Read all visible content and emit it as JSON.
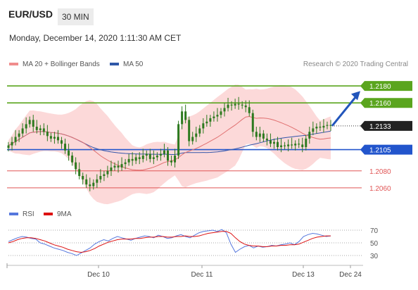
{
  "header": {
    "pair": "EUR/USD",
    "timeframe": "30 MIN",
    "datetime": "Monday, December 14, 2020 1:11:30 AM CET",
    "credit": "Research © 2020 Trading Central"
  },
  "legend": {
    "ma20": "MA 20 + Bollinger Bands",
    "ma50": "MA 50",
    "rsi": "RSI",
    "ma9": "9MA"
  },
  "colors": {
    "resistance": "#5aa51e",
    "support": "#2255cc",
    "minor_support": "#e05555",
    "candle": "#2d7a1f",
    "band_fill": "#fbd2d2",
    "ma20": "#e07070",
    "ma50": "#3355aa",
    "rsi": "#5577dd",
    "ma9": "#dd1111",
    "arrow": "#2255bb"
  },
  "chart_data": [
    {
      "type": "candlestick",
      "title": "EUR/USD 30 MIN",
      "x_tick_labels": [
        "Dec 10",
        "Dec 11",
        "Dec 13",
        "Dec 24"
      ],
      "ylim": [
        1.2045,
        1.2195
      ],
      "levels": [
        {
          "value": 1.218,
          "label": "1.2180",
          "kind": "resistance"
        },
        {
          "value": 1.216,
          "label": "1.2160",
          "kind": "resistance"
        },
        {
          "value": 1.2133,
          "label": "1.2133",
          "kind": "current"
        },
        {
          "value": 1.2105,
          "label": "1.2105",
          "kind": "support"
        },
        {
          "value": 1.208,
          "label": "1.2080",
          "kind": "minor-support"
        },
        {
          "value": 1.206,
          "label": "1.2060",
          "kind": "minor-support"
        }
      ],
      "close": [
        1.211,
        1.2114,
        1.212,
        1.2124,
        1.213,
        1.2135,
        1.214,
        1.2132,
        1.2128,
        1.213,
        1.2126,
        1.2121,
        1.2118,
        1.212,
        1.2116,
        1.2112,
        1.2104,
        1.2098,
        1.209,
        1.2082,
        1.2074,
        1.207,
        1.2064,
        1.2062,
        1.2066,
        1.207,
        1.2074,
        1.2076,
        1.208,
        1.2084,
        1.2086,
        1.2084,
        1.2088,
        1.209,
        1.2094,
        1.2092,
        1.2096,
        1.2094,
        1.2098,
        1.21,
        1.2094,
        1.2096,
        1.2098,
        1.21,
        1.2104,
        1.2092,
        1.209,
        1.2098,
        1.2135,
        1.215,
        1.214,
        1.2115,
        1.212,
        1.2124,
        1.213,
        1.2136,
        1.2138,
        1.2142,
        1.2144,
        1.2146,
        1.215,
        1.2154,
        1.2158,
        1.2157,
        1.2159,
        1.2158,
        1.2157,
        1.2155,
        1.2148,
        1.2126,
        1.212,
        1.2124,
        1.2118,
        1.2116,
        1.2112,
        1.2114,
        1.2108,
        1.211,
        1.2109,
        1.2111,
        1.211,
        1.2112,
        1.2111,
        1.2108,
        1.2118,
        1.2126,
        1.213,
        1.2132,
        1.2131,
        1.2133,
        1.2134,
        1.2133
      ],
      "arrow_target": 1.2174,
      "series": [
        {
          "name": "MA 20 + Bollinger Bands"
        },
        {
          "name": "MA 50"
        }
      ]
    },
    {
      "type": "line",
      "title": "RSI",
      "yticks": [
        30,
        50,
        70
      ],
      "ylim": [
        20,
        80
      ],
      "series": [
        {
          "name": "RSI",
          "values": [
            52,
            55,
            58,
            60,
            59,
            57,
            56,
            50,
            48,
            45,
            42,
            40,
            38,
            35,
            33,
            30,
            34,
            38,
            42,
            48,
            52,
            55,
            53,
            57,
            60,
            58,
            56,
            54,
            57,
            59,
            61,
            60,
            58,
            62,
            60,
            57,
            58,
            61,
            63,
            60,
            58,
            62,
            66,
            68,
            69,
            70,
            68,
            71,
            66,
            48,
            35,
            40,
            44,
            46,
            42,
            45,
            43,
            44,
            46,
            45,
            47,
            48,
            50,
            47,
            52,
            60,
            63,
            65,
            64,
            62,
            60,
            61
          ]
        },
        {
          "name": "9MA",
          "values": [
            50,
            52,
            55,
            57,
            58,
            58,
            57,
            55,
            53,
            50,
            47,
            45,
            43,
            40,
            38,
            36,
            35,
            36,
            38,
            41,
            45,
            48,
            51,
            53,
            55,
            56,
            56,
            56,
            57,
            57,
            58,
            59,
            59,
            60,
            60,
            59,
            59,
            60,
            60,
            61,
            60,
            60,
            61,
            63,
            65,
            66,
            67,
            68,
            68,
            65,
            58,
            52,
            48,
            46,
            45,
            45,
            44,
            44,
            45,
            45,
            46,
            46,
            47,
            47,
            48,
            51,
            54,
            57,
            59,
            60,
            61,
            61
          ]
        }
      ]
    }
  ]
}
